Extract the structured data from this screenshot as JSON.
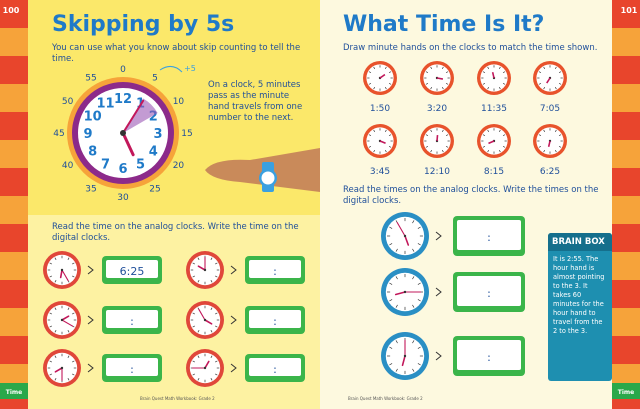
{
  "left_page": {
    "page_number": "100",
    "title": "Skipping by 5s",
    "intro": "You can use what you know about skip counting to tell the time.",
    "minute_labels": [
      "0",
      "5",
      "10",
      "15",
      "20",
      "25",
      "30",
      "35",
      "40",
      "45",
      "50",
      "55"
    ],
    "plus_five": "+5",
    "clock_numbers": [
      "12",
      "1",
      "2",
      "3",
      "4",
      "5",
      "6",
      "7",
      "8",
      "9",
      "10",
      "11"
    ],
    "note": "On a clock, 5 minutes pass as the minute hand travels from one number to the next.",
    "instruction": "Read the time on the analog clocks. Write the time on the digital clocks.",
    "digital_displays": [
      "6:25",
      ":",
      ":",
      ":",
      ":",
      ":"
    ],
    "footer": "Brain Quest Math Workbook: Grade 2",
    "tab": "Time"
  },
  "right_page": {
    "page_number": "101",
    "title": "What Time Is It?",
    "instruction_1": "Draw minute hands on the clocks to match the time shown.",
    "times": [
      "1:50",
      "3:20",
      "11:35",
      "7:05",
      "3:45",
      "12:10",
      "8:15",
      "6:25"
    ],
    "instruction_2": "Read the times on the analog clocks. Write the times on the digital clocks.",
    "digital_displays": [
      ":",
      ":",
      ":"
    ],
    "brain_box": {
      "title": "BRAIN BOX",
      "text": "It is 2:55. The hour hand is almost pointing to the 3. It takes 60 minutes for the hour hand to travel from the 2 to the 3."
    },
    "footer": "Brain Quest Math Workbook: Grade 2",
    "tab": "Time"
  }
}
